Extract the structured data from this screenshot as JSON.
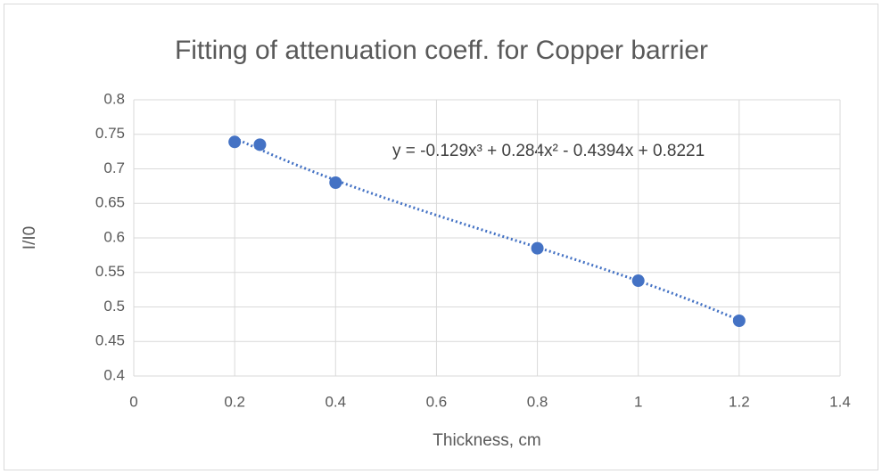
{
  "chart_data": {
    "type": "scatter",
    "title": "Fitting of attenuation coeff. for Copper barrier",
    "x_label": "Thickness, cm",
    "y_label": "I/I0",
    "series": [
      {
        "x": [
          0.2,
          0.25,
          0.4,
          0.8,
          1.0,
          1.2
        ],
        "values": [
          0.739,
          0.735,
          0.68,
          0.585,
          0.538,
          0.48
        ],
        "color": "#4472c4"
      }
    ],
    "trendline": {
      "coefficients": [
        -0.129,
        0.284,
        -0.4394,
        0.8221
      ],
      "label": "y = -0.129x³ + 0.284x² - 0.4394x + 0.8221",
      "color": "#4472c4"
    },
    "xlim": [
      0,
      1.4
    ],
    "xticks": [
      0,
      0.2,
      0.4,
      0.6,
      0.8,
      1,
      1.2,
      1.4
    ],
    "ylim": [
      0.4,
      0.8
    ],
    "yticks": [
      0.4,
      0.45,
      0.5,
      0.55,
      0.6,
      0.65,
      0.7,
      0.75,
      0.8
    ],
    "grid": true
  }
}
